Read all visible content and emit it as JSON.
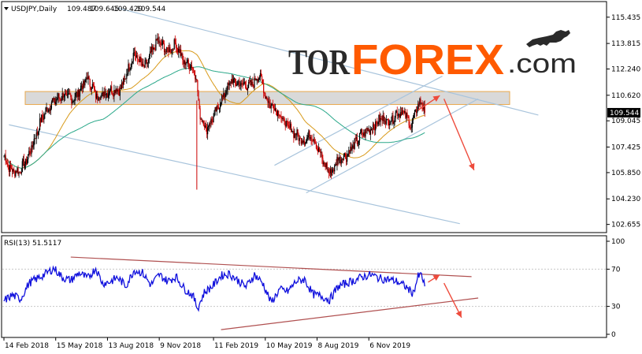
{
  "chart_data": [
    {
      "type": "candlestick",
      "header": {
        "symbol": "USDJPY,Daily",
        "open": "109.487",
        "high": "109.645",
        "low": "109.429",
        "close": "109.544"
      },
      "current_price_label": "109.544",
      "ylim": [
        102.2,
        116.3
      ],
      "y_ticks": [
        "115.435",
        "113.815",
        "112.240",
        "110.620",
        "109.045",
        "107.425",
        "105.850",
        "104.230",
        "102.655"
      ],
      "x_ticks": [
        "14 Feb 2018",
        "15 May 2018",
        "13 Aug 2018",
        "9 Nov 2018",
        "11 Feb 2019",
        "10 May 2019",
        "8 Aug 2019",
        "6 Nov 2019"
      ],
      "x_tick_index": [
        0,
        62,
        124,
        186,
        251,
        313,
        375,
        437
      ],
      "bar_count": 505,
      "resistance_zone": [
        110.05,
        110.85
      ],
      "anchors": [
        [
          0,
          106.9
        ],
        [
          8,
          106.0
        ],
        [
          18,
          105.9
        ],
        [
          28,
          106.7
        ],
        [
          36,
          107.8
        ],
        [
          46,
          109.3
        ],
        [
          58,
          110.2
        ],
        [
          70,
          110.6
        ],
        [
          84,
          110.4
        ],
        [
          100,
          111.7
        ],
        [
          112,
          110.5
        ],
        [
          126,
          110.9
        ],
        [
          140,
          111.0
        ],
        [
          156,
          113.2
        ],
        [
          168,
          112.3
        ],
        [
          184,
          114.0
        ],
        [
          196,
          113.3
        ],
        [
          206,
          113.8
        ],
        [
          216,
          112.6
        ],
        [
          222,
          112.6
        ],
        [
          230,
          111.9
        ],
        [
          234,
          109.6
        ],
        [
          242,
          108.5
        ],
        [
          252,
          109.4
        ],
        [
          262,
          110.5
        ],
        [
          272,
          111.5
        ],
        [
          284,
          111.3
        ],
        [
          296,
          111.2
        ],
        [
          306,
          111.9
        ],
        [
          316,
          110.2
        ],
        [
          326,
          109.8
        ],
        [
          336,
          108.9
        ],
        [
          348,
          108.3
        ],
        [
          358,
          107.8
        ],
        [
          368,
          108.2
        ],
        [
          374,
          107.6
        ],
        [
          384,
          106.3
        ],
        [
          392,
          105.8
        ],
        [
          400,
          106.7
        ],
        [
          410,
          106.9
        ],
        [
          420,
          107.6
        ],
        [
          428,
          108.2
        ],
        [
          440,
          108.6
        ],
        [
          452,
          109.2
        ],
        [
          462,
          109.0
        ],
        [
          472,
          109.6
        ],
        [
          480,
          109.5
        ],
        [
          488,
          108.7
        ],
        [
          494,
          109.8
        ],
        [
          500,
          110.3
        ],
        [
          504,
          109.54
        ]
      ],
      "indicators": [
        "ma-orange",
        "ma-teal"
      ],
      "trendlines": [
        {
          "name": "upper-channel",
          "points": [
            [
              136,
              116.0
            ],
            [
              640,
              109.4
            ]
          ]
        },
        {
          "name": "lower-channel",
          "points": [
            [
              6,
              108.8
            ],
            [
              546,
              102.7
            ]
          ]
        },
        {
          "name": "rising-upper",
          "points": [
            [
              324,
              106.3
            ],
            [
              525,
              111.8
            ]
          ]
        },
        {
          "name": "rising-lower",
          "points": [
            [
              362,
              104.6
            ],
            [
              568,
              110.4
            ]
          ]
        }
      ],
      "forecast_arrows": [
        {
          "name": "forecast-up",
          "from": [
            496,
            109.7
          ],
          "to": [
            522,
            110.6
          ]
        },
        {
          "name": "forecast-down",
          "from": [
            527,
            110.4
          ],
          "to": [
            563,
            106.0
          ]
        }
      ],
      "axis_color": "#000000",
      "candle_up_color": "#000000",
      "candle_down_color": "#cc0000",
      "current_price_bg": "#000000"
    },
    {
      "type": "line",
      "name": "RSI",
      "header": "RSI(13) 51.5117",
      "ylim": [
        0,
        100
      ],
      "y_ticks": [
        "100",
        "70",
        "30",
        "0"
      ],
      "line_color": "#1010dd",
      "anchors": [
        [
          0,
          36
        ],
        [
          10,
          42
        ],
        [
          20,
          38
        ],
        [
          30,
          55
        ],
        [
          40,
          60
        ],
        [
          50,
          65
        ],
        [
          60,
          71
        ],
        [
          70,
          61
        ],
        [
          80,
          58
        ],
        [
          90,
          66
        ],
        [
          100,
          60
        ],
        [
          110,
          71
        ],
        [
          118,
          55
        ],
        [
          126,
          56
        ],
        [
          136,
          61
        ],
        [
          146,
          52
        ],
        [
          156,
          69
        ],
        [
          166,
          66
        ],
        [
          176,
          53
        ],
        [
          186,
          64
        ],
        [
          196,
          57
        ],
        [
          206,
          62
        ],
        [
          216,
          49
        ],
        [
          226,
          42
        ],
        [
          232,
          28
        ],
        [
          240,
          45
        ],
        [
          250,
          52
        ],
        [
          260,
          63
        ],
        [
          270,
          65
        ],
        [
          280,
          58
        ],
        [
          290,
          51
        ],
        [
          300,
          64
        ],
        [
          310,
          55
        ],
        [
          320,
          34
        ],
        [
          330,
          48
        ],
        [
          340,
          46
        ],
        [
          350,
          57
        ],
        [
          360,
          59
        ],
        [
          370,
          43
        ],
        [
          380,
          41
        ],
        [
          390,
          37
        ],
        [
          400,
          51
        ],
        [
          410,
          55
        ],
        [
          420,
          58
        ],
        [
          430,
          62
        ],
        [
          440,
          64
        ],
        [
          450,
          60
        ],
        [
          460,
          59
        ],
        [
          470,
          57
        ],
        [
          480,
          52
        ],
        [
          490,
          44
        ],
        [
          496,
          62
        ],
        [
          500,
          64
        ],
        [
          504,
          51.5
        ]
      ],
      "trendlines": [
        {
          "name": "rsi-upper-trend",
          "points": [
            [
              80,
              83
            ],
            [
              560,
              62
            ]
          ]
        },
        {
          "name": "rsi-lower-trend",
          "points": [
            [
              260,
              5
            ],
            [
              568,
              39
            ]
          ]
        }
      ],
      "forecast_arrows": [
        {
          "name": "rsi-forecast-up",
          "from": [
            508,
            56
          ],
          "to": [
            522,
            64
          ]
        },
        {
          "name": "rsi-forecast-down",
          "from": [
            527,
            55
          ],
          "to": [
            548,
            18
          ]
        }
      ]
    }
  ],
  "logo": {
    "text_a": "TOR",
    "text_b": "FOREX",
    "text_c": ".com"
  },
  "colors": {
    "ma_orange": "#d89a1a",
    "ma_teal": "#2aa88a",
    "trendline": "#a8c4dc",
    "forecast": "#ee4b3c",
    "zone_fill": "#d9d9d9",
    "zone_border": "#e8a84c",
    "rsi_trend": "#b05050",
    "logo_dark": "#2a2a2a",
    "logo_orange": "#ff5a00"
  }
}
